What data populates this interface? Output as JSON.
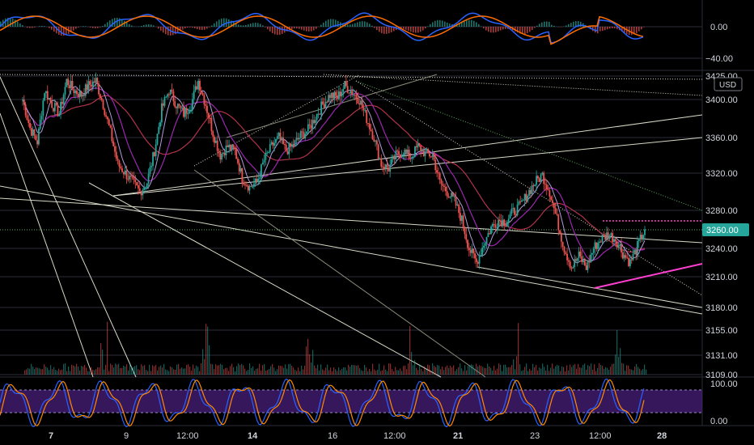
{
  "chart_data": {
    "type": "candlestick",
    "currency_badge": "USD",
    "last_price_label": "3260.00",
    "price_axis": {
      "ticks": [
        "3425.00",
        "3400.00",
        "3360.00",
        "3320.00",
        "3280.00",
        "3240.00",
        "3210.00",
        "3180.00",
        "3155.00",
        "3131.00",
        "3109.00"
      ],
      "ylim": [
        3109,
        3425
      ]
    },
    "macd_axis": {
      "ticks": [
        "0.00",
        "−40.00"
      ]
    },
    "stoch_axis": {
      "ticks": [
        "100.00",
        "0.00"
      ]
    },
    "x_axis": {
      "ticks": [
        {
          "label": "7",
          "bold": true
        },
        {
          "label": "9",
          "bold": false
        },
        {
          "label": "12:00",
          "bold": false
        },
        {
          "label": "14",
          "bold": true
        },
        {
          "label": "16",
          "bold": false
        },
        {
          "label": "12:00",
          "bold": false
        },
        {
          "label": "21",
          "bold": true
        },
        {
          "label": "23",
          "bold": false
        },
        {
          "label": "12:00",
          "bold": false
        },
        {
          "label": "28",
          "bold": true
        }
      ]
    },
    "price_path": [
      [
        0,
        3400
      ],
      [
        1,
        3370
      ],
      [
        2,
        3355
      ],
      [
        3,
        3410
      ],
      [
        4,
        3395
      ],
      [
        5,
        3385
      ],
      [
        6,
        3420
      ],
      [
        7,
        3410
      ],
      [
        8,
        3405
      ],
      [
        9,
        3415
      ],
      [
        10,
        3420
      ],
      [
        11,
        3395
      ],
      [
        12,
        3365
      ],
      [
        13,
        3330
      ],
      [
        14,
        3320
      ],
      [
        15,
        3310
      ],
      [
        16,
        3300
      ],
      [
        17,
        3310
      ],
      [
        18,
        3345
      ],
      [
        19,
        3390
      ],
      [
        20,
        3410
      ],
      [
        21,
        3395
      ],
      [
        22,
        3385
      ],
      [
        23,
        3395
      ],
      [
        24,
        3420
      ],
      [
        25,
        3395
      ],
      [
        26,
        3365
      ],
      [
        27,
        3340
      ],
      [
        28,
        3350
      ],
      [
        29,
        3345
      ],
      [
        30,
        3315
      ],
      [
        31,
        3305
      ],
      [
        32,
        3310
      ],
      [
        33,
        3335
      ],
      [
        34,
        3350
      ],
      [
        35,
        3360
      ],
      [
        36,
        3345
      ],
      [
        37,
        3352
      ],
      [
        38,
        3362
      ],
      [
        39,
        3368
      ],
      [
        40,
        3382
      ],
      [
        41,
        3395
      ],
      [
        42,
        3405
      ],
      [
        43,
        3402
      ],
      [
        44,
        3415
      ],
      [
        45,
        3408
      ],
      [
        46,
        3400
      ],
      [
        47,
        3380
      ],
      [
        48,
        3360
      ],
      [
        49,
        3330
      ],
      [
        50,
        3325
      ],
      [
        51,
        3340
      ],
      [
        52,
        3345
      ],
      [
        53,
        3338
      ],
      [
        54,
        3350
      ],
      [
        55,
        3342
      ],
      [
        56,
        3340
      ],
      [
        57,
        3310
      ],
      [
        58,
        3300
      ],
      [
        59,
        3290
      ],
      [
        60,
        3270
      ],
      [
        61,
        3240
      ],
      [
        62,
        3225
      ],
      [
        63,
        3245
      ],
      [
        64,
        3262
      ],
      [
        65,
        3270
      ],
      [
        66,
        3268
      ],
      [
        67,
        3278
      ],
      [
        68,
        3285
      ],
      [
        69,
        3298
      ],
      [
        70,
        3310
      ],
      [
        71,
        3318
      ],
      [
        72,
        3300
      ],
      [
        73,
        3270
      ],
      [
        74,
        3240
      ],
      [
        75,
        3220
      ],
      [
        76,
        3232
      ],
      [
        77,
        3220
      ],
      [
        78,
        3240
      ],
      [
        79,
        3250
      ],
      [
        80,
        3255
      ],
      [
        81,
        3250
      ],
      [
        82,
        3235
      ],
      [
        83,
        3225
      ],
      [
        84,
        3242
      ],
      [
        85,
        3260
      ]
    ],
    "price_x_domain": [
      0,
      85
    ],
    "price_x_range_px": [
      28,
      797
    ]
  }
}
